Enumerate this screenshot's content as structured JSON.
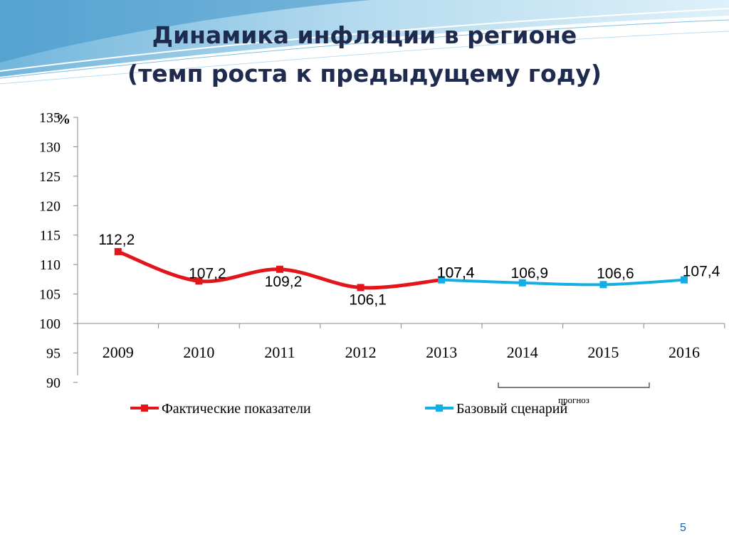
{
  "title_line1": "Динамика инфляции в регионе",
  "title_line2": "(темп роста к предыдущему году)",
  "page_number": "5",
  "forecast_note": "прогноз",
  "colors": {
    "actual": "#e2151b",
    "forecast": "#14aee6",
    "title": "#1f2a4f",
    "accent": "#1f5fa8"
  },
  "chart_data": {
    "type": "line",
    "ylabel": "%",
    "xlabel": "",
    "ylim": [
      90,
      135
    ],
    "yticks": [
      "135",
      "130",
      "125",
      "120",
      "115",
      "110",
      "105",
      "100",
      "95",
      "90"
    ],
    "categories": [
      "2009",
      "2010",
      "2011",
      "2012",
      "2013",
      "2014",
      "2015",
      "2016"
    ],
    "series": [
      {
        "name": "Фактические показатели",
        "x": [
          "2009",
          "2010",
          "2011",
          "2012",
          "2013"
        ],
        "values": [
          112.2,
          107.2,
          109.2,
          106.1,
          107.4
        ],
        "labels": [
          "112,2",
          "107,2",
          "109,2",
          "106,1",
          "107,4"
        ]
      },
      {
        "name": "Базовый сценарий",
        "x": [
          "2013",
          "2014",
          "2015",
          "2016"
        ],
        "values": [
          107.4,
          106.9,
          106.6,
          107.4
        ],
        "labels": [
          "107,4",
          "106,9",
          "106,6",
          "107,4"
        ]
      }
    ],
    "legend": "bottom",
    "grid": false
  }
}
